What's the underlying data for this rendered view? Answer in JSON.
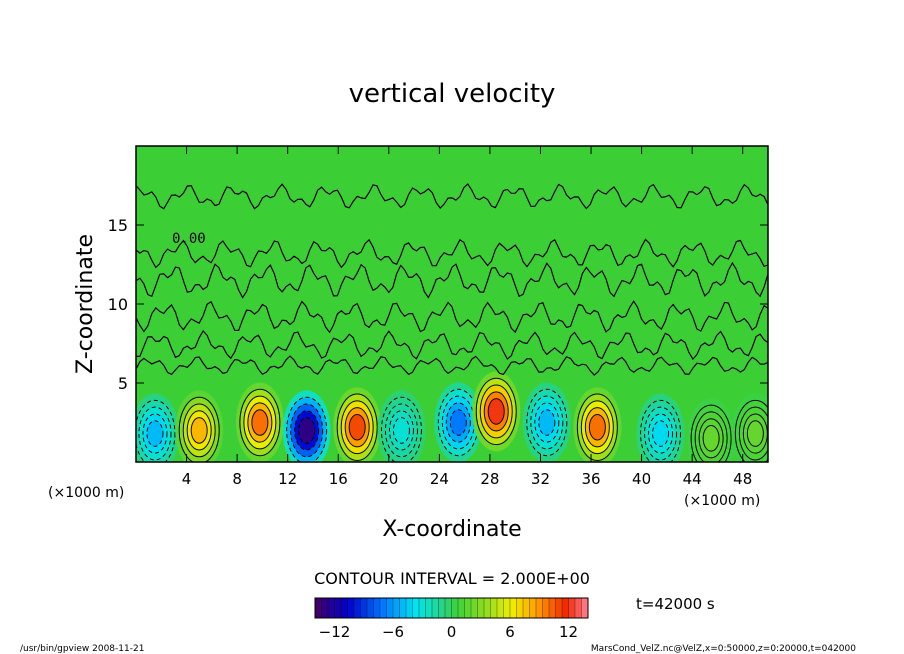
{
  "chart_data": {
    "type": "heatmap",
    "title": "vertical velocity",
    "xlabel": "X-coordinate",
    "ylabel": "Z-coordinate",
    "x_unit_left": "(×1000 m)",
    "x_unit_right": "(×1000 m)",
    "xlim": [
      0,
      50
    ],
    "ylim": [
      0,
      20
    ],
    "x_ticks": [
      "4",
      "8",
      "12",
      "16",
      "20",
      "24",
      "28",
      "32",
      "36",
      "40",
      "44",
      "48"
    ],
    "y_ticks": [
      "5",
      "10",
      "15"
    ],
    "contour_label": "0.00",
    "contour_interval_text": "CONTOUR INTERVAL = 2.000E+00",
    "time_text": "t=42000 s",
    "colorbar": {
      "min": -14,
      "max": 14,
      "tick_labels": [
        "−12",
        "−6",
        "0",
        "6",
        "12"
      ],
      "tick_values": [
        -12,
        -6,
        0,
        6,
        12
      ]
    },
    "cells": [
      {
        "x": 1.5,
        "z": 1.8,
        "value": -5
      },
      {
        "x": 5.0,
        "z": 2.0,
        "value": 8
      },
      {
        "x": 9.8,
        "z": 2.5,
        "value": 10
      },
      {
        "x": 13.5,
        "z": 2.0,
        "value": -13
      },
      {
        "x": 17.5,
        "z": 2.2,
        "value": 11
      },
      {
        "x": 21.0,
        "z": 2.0,
        "value": -3
      },
      {
        "x": 25.5,
        "z": 2.5,
        "value": -7
      },
      {
        "x": 28.5,
        "z": 3.2,
        "value": 12
      },
      {
        "x": 32.5,
        "z": 2.5,
        "value": -5
      },
      {
        "x": 36.5,
        "z": 2.2,
        "value": 10
      },
      {
        "x": 41.5,
        "z": 1.8,
        "value": -4
      },
      {
        "x": 45.5,
        "z": 1.5,
        "value": 2
      },
      {
        "x": 49.0,
        "z": 1.8,
        "value": 2
      }
    ],
    "grid": false,
    "legend": "bottom (colorbar)"
  },
  "footer": {
    "left": "/usr/bin/gpview  2008-11-21",
    "right": "MarsCond_VelZ.nc@VelZ,x=0:50000,z=0:20000,t=042000"
  }
}
